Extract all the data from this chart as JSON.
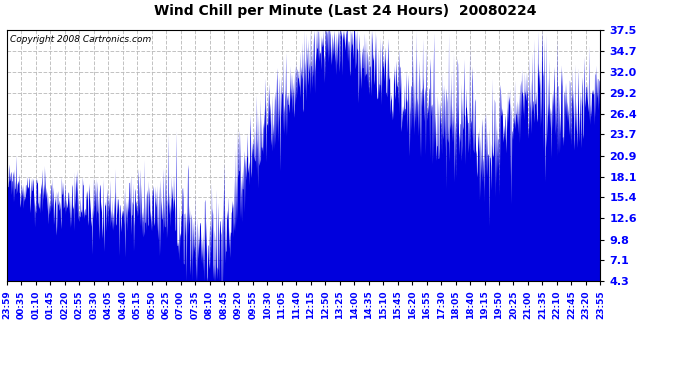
{
  "title": "Wind Chill per Minute (Last 24 Hours)  20080224",
  "copyright": "Copyright 2008 Cartronics.com",
  "yticks": [
    4.3,
    7.1,
    9.8,
    12.6,
    15.4,
    18.1,
    20.9,
    23.7,
    26.4,
    29.2,
    32.0,
    34.7,
    37.5
  ],
  "ylim": [
    4.3,
    37.5
  ],
  "line_color": "#0000dd",
  "bg_color": "#ffffff",
  "grid_color": "#bbbbbb",
  "x_labels": [
    "23:59",
    "00:35",
    "01:10",
    "01:45",
    "02:20",
    "02:55",
    "03:30",
    "04:05",
    "04:40",
    "05:15",
    "05:50",
    "06:25",
    "07:00",
    "07:35",
    "08:10",
    "08:45",
    "09:20",
    "09:55",
    "10:30",
    "11:05",
    "11:40",
    "12:15",
    "12:50",
    "13:25",
    "14:00",
    "14:35",
    "15:10",
    "15:45",
    "16:20",
    "16:55",
    "17:30",
    "18:05",
    "18:40",
    "19:15",
    "19:50",
    "20:25",
    "21:00",
    "21:35",
    "22:10",
    "22:45",
    "23:20",
    "23:55"
  ],
  "n_points": 1440,
  "segments": [
    {
      "t0": 0,
      "t1": 55,
      "v0": 17.5,
      "v1": 16.5,
      "noise": 1.2
    },
    {
      "t0": 55,
      "t1": 100,
      "v0": 16.5,
      "v1": 15.0,
      "noise": 2.0
    },
    {
      "t0": 100,
      "t1": 200,
      "v0": 15.0,
      "v1": 14.5,
      "noise": 2.0
    },
    {
      "t0": 200,
      "t1": 290,
      "v0": 14.5,
      "v1": 14.0,
      "noise": 2.5
    },
    {
      "t0": 290,
      "t1": 370,
      "v0": 14.0,
      "v1": 13.8,
      "noise": 2.5
    },
    {
      "t0": 370,
      "t1": 395,
      "v0": 13.8,
      "v1": 14.0,
      "noise": 2.5
    },
    {
      "t0": 395,
      "t1": 430,
      "v0": 14.0,
      "v1": 12.0,
      "noise": 3.5
    },
    {
      "t0": 430,
      "t1": 500,
      "v0": 12.0,
      "v1": 8.0,
      "noise": 4.0
    },
    {
      "t0": 500,
      "t1": 540,
      "v0": 8.0,
      "v1": 12.0,
      "noise": 4.5
    },
    {
      "t0": 540,
      "t1": 580,
      "v0": 12.0,
      "v1": 20.0,
      "noise": 4.0
    },
    {
      "t0": 580,
      "t1": 640,
      "v0": 20.0,
      "v1": 26.0,
      "noise": 3.5
    },
    {
      "t0": 640,
      "t1": 700,
      "v0": 26.0,
      "v1": 30.0,
      "noise": 3.0
    },
    {
      "t0": 700,
      "t1": 760,
      "v0": 30.0,
      "v1": 35.5,
      "noise": 3.0
    },
    {
      "t0": 760,
      "t1": 820,
      "v0": 35.5,
      "v1": 36.0,
      "noise": 2.5
    },
    {
      "t0": 820,
      "t1": 870,
      "v0": 36.0,
      "v1": 33.5,
      "noise": 2.5
    },
    {
      "t0": 870,
      "t1": 930,
      "v0": 33.5,
      "v1": 30.5,
      "noise": 3.0
    },
    {
      "t0": 930,
      "t1": 980,
      "v0": 30.5,
      "v1": 28.5,
      "noise": 3.5
    },
    {
      "t0": 980,
      "t1": 1030,
      "v0": 28.5,
      "v1": 27.5,
      "noise": 4.0
    },
    {
      "t0": 1030,
      "t1": 1080,
      "v0": 27.5,
      "v1": 26.0,
      "noise": 4.5
    },
    {
      "t0": 1080,
      "t1": 1120,
      "v0": 26.0,
      "v1": 24.5,
      "noise": 4.5
    },
    {
      "t0": 1120,
      "t1": 1170,
      "v0": 24.5,
      "v1": 22.5,
      "noise": 4.5
    },
    {
      "t0": 1170,
      "t1": 1210,
      "v0": 22.5,
      "v1": 26.0,
      "noise": 4.0
    },
    {
      "t0": 1210,
      "t1": 1260,
      "v0": 26.0,
      "v1": 27.5,
      "noise": 3.5
    },
    {
      "t0": 1260,
      "t1": 1300,
      "v0": 27.5,
      "v1": 28.0,
      "noise": 3.5
    },
    {
      "t0": 1300,
      "t1": 1340,
      "v0": 28.0,
      "v1": 27.5,
      "noise": 3.5
    },
    {
      "t0": 1340,
      "t1": 1380,
      "v0": 27.5,
      "v1": 27.0,
      "noise": 3.5
    },
    {
      "t0": 1380,
      "t1": 1440,
      "v0": 27.0,
      "v1": 29.5,
      "noise": 3.0
    }
  ]
}
